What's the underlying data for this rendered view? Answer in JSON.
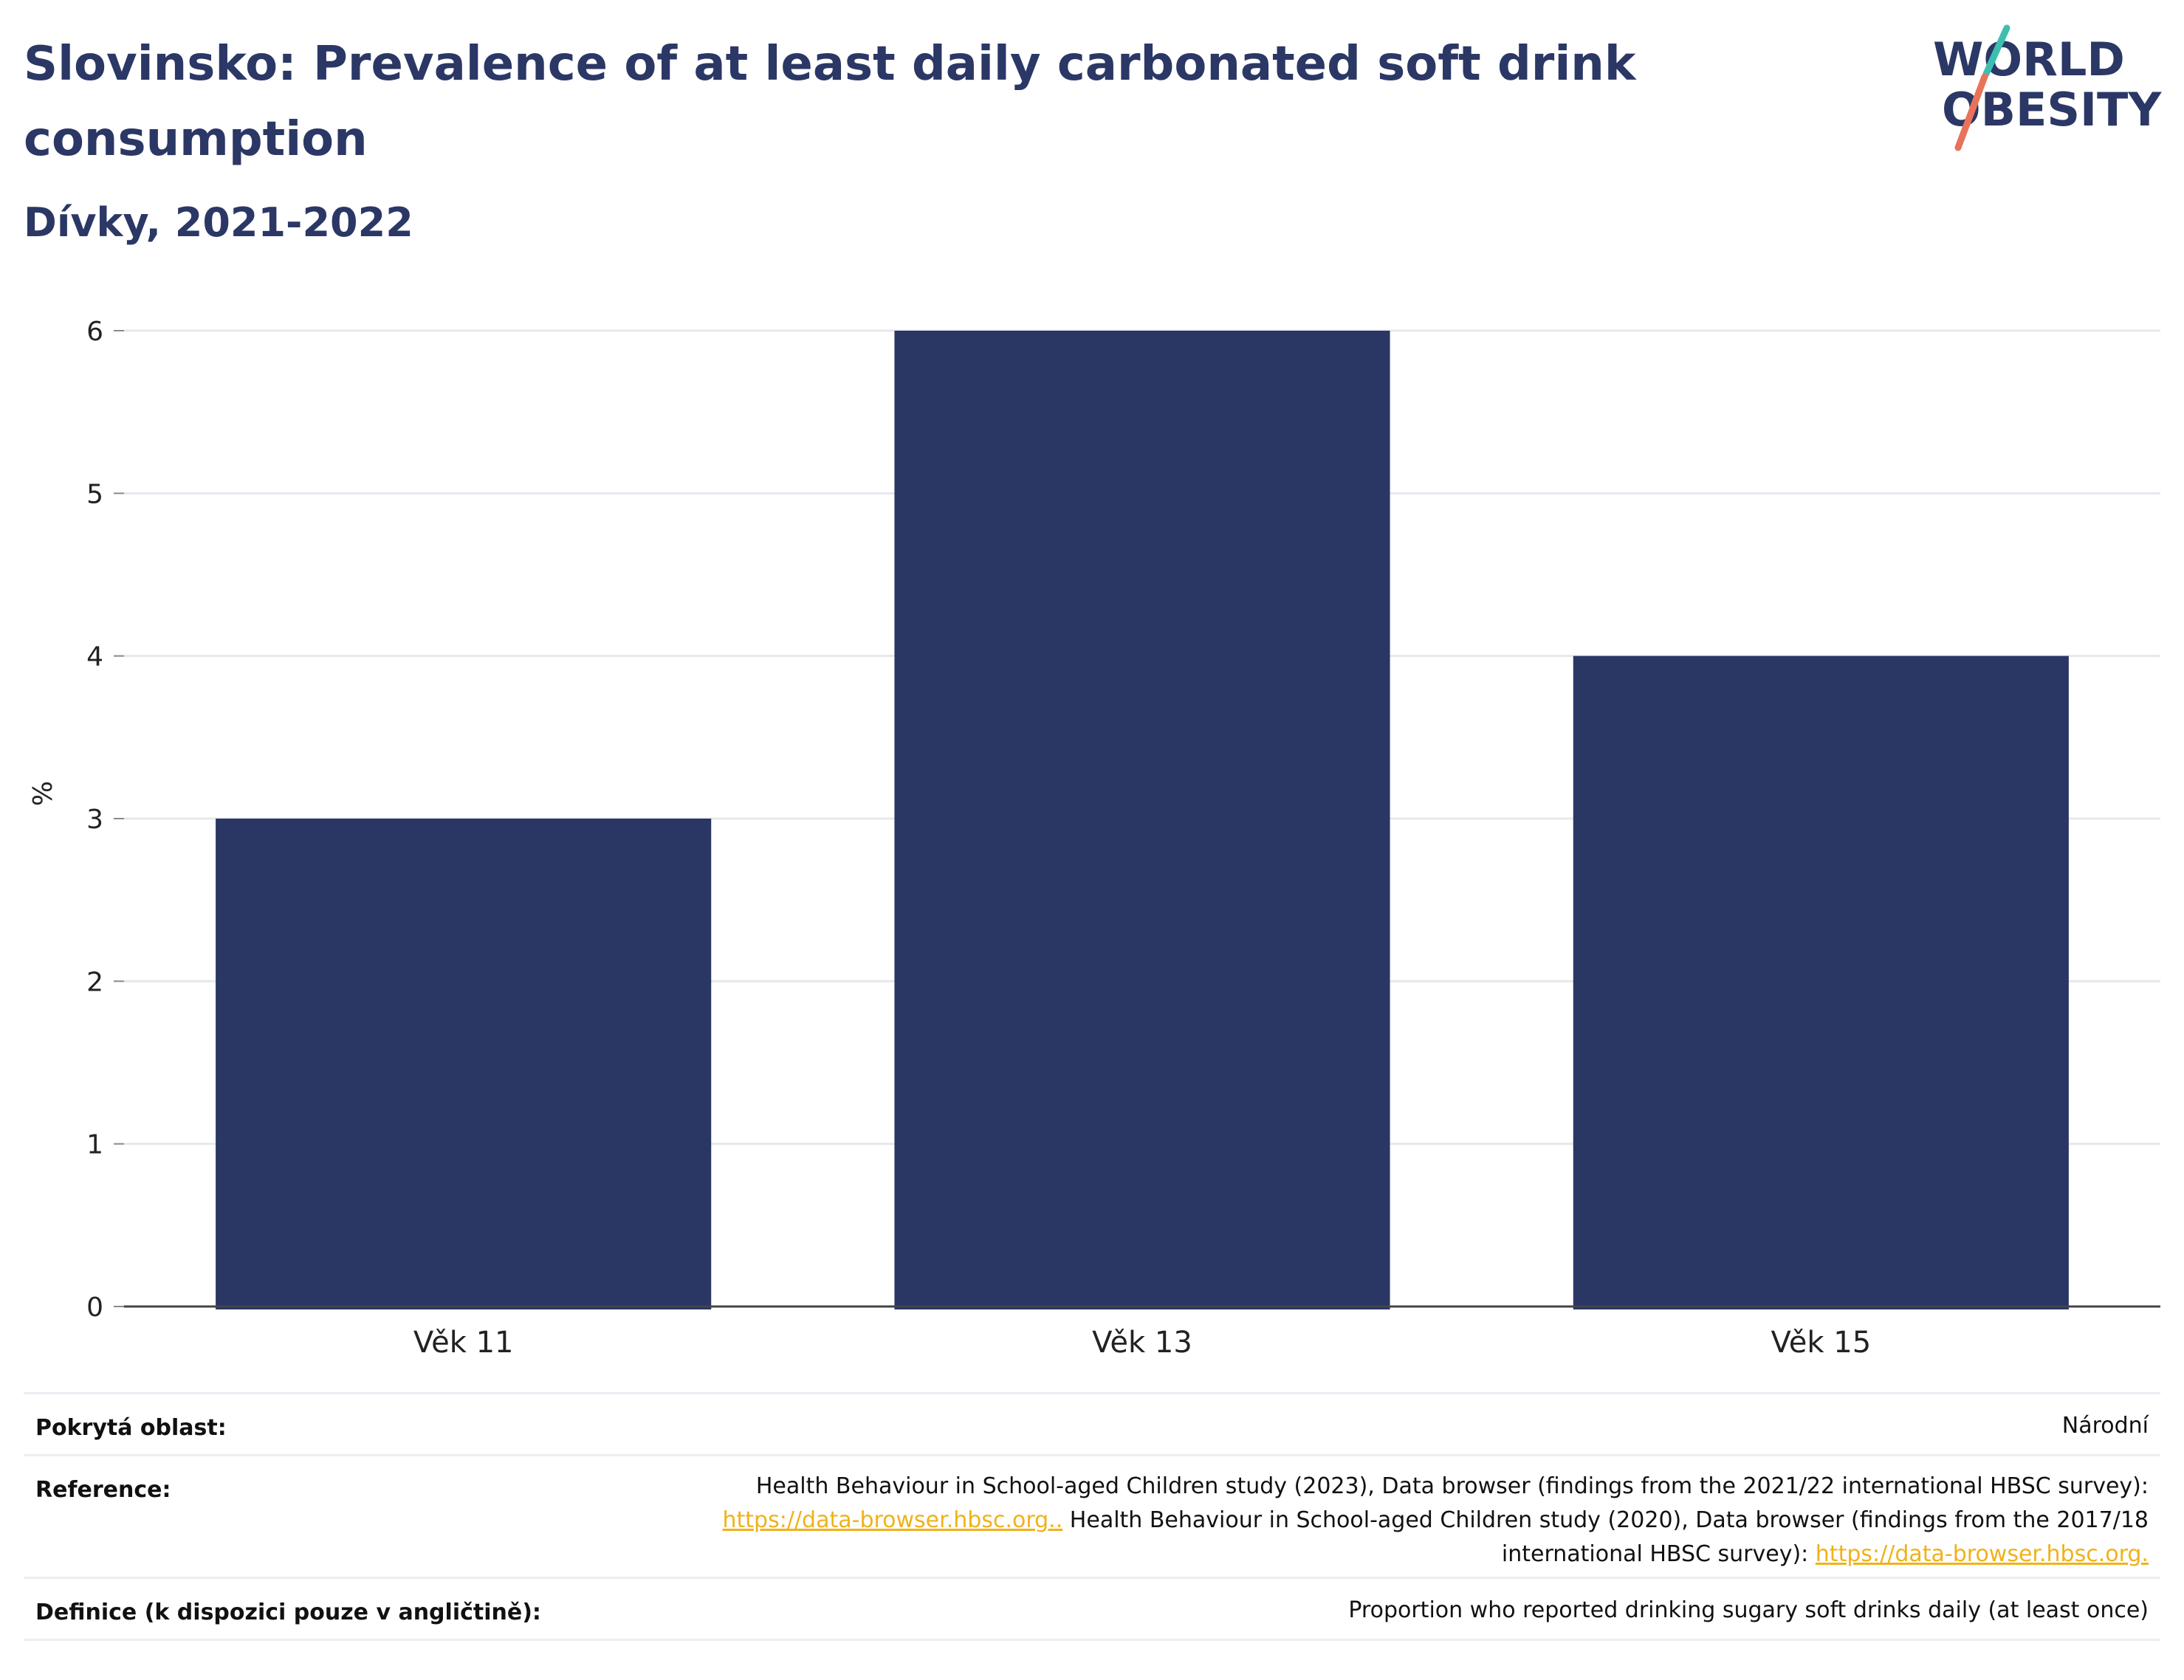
{
  "header": {
    "title": "Slovinsko: Prevalence of at least daily carbonated soft drink consumption",
    "subtitle": "Dívky, 2021-2022"
  },
  "logo": {
    "line1": "WORLD",
    "line2": "OBESITY",
    "colors": {
      "text": "#2b3765",
      "slash_top": "#3dbfb0",
      "slash_bottom": "#e8735a"
    }
  },
  "chart_data": {
    "type": "bar",
    "categories": [
      "Věk 11",
      "Věk 13",
      "Věk 15"
    ],
    "values": [
      3,
      6,
      4
    ],
    "ylabel": "%",
    "ylim": [
      0,
      6
    ],
    "yticks": [
      0,
      1,
      2,
      3,
      4,
      5,
      6
    ],
    "grid": true,
    "bar_color": "#2a3663"
  },
  "meta": {
    "coverage": {
      "label": "Pokrytá oblast:",
      "value": "Národní"
    },
    "reference": {
      "label": "Reference:",
      "text1": "Health Behaviour in School-aged Children study (2023), Data browser (findings from the 2021/22 international HBSC survey):",
      "link1": "https://data-browser.hbsc.org..",
      "text2": " Health Behaviour in School-aged Children study (2020), Data browser (findings from the 2017/18",
      "text3": "international HBSC survey): ",
      "link2": "https://data-browser.hbsc.org."
    },
    "definition": {
      "label": "Definice (k dispozici pouze v angličtině):",
      "value": "Proportion who reported drinking sugary soft drinks daily (at least once)"
    }
  }
}
